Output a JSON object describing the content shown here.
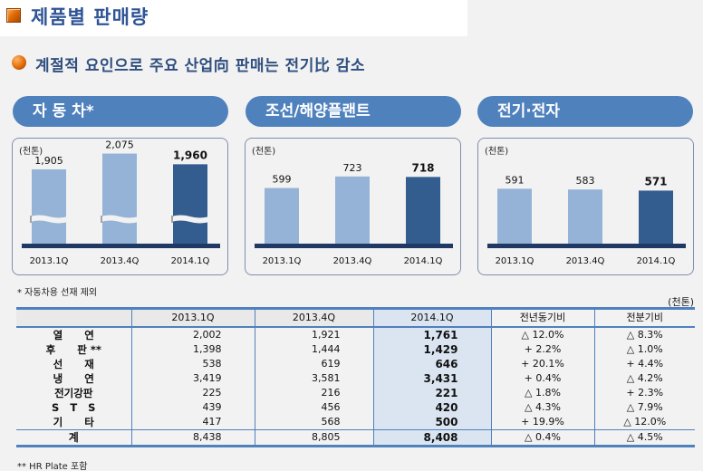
{
  "header": {
    "title": "제품별 판매량",
    "subtitle": "계절적 요인으로 주요 산업向 판매는 전기比 감소"
  },
  "chart_data": [
    {
      "type": "bar",
      "title": "자 동 차*",
      "unit": "(천톤)",
      "categories": [
        "2013.1Q",
        "2013.4Q",
        "2014.1Q"
      ],
      "values": [
        1905,
        2075,
        1960
      ],
      "value_labels": [
        "1,905",
        "2,075",
        "1,960"
      ],
      "axis_break": true,
      "highlight_index": 2,
      "colors": {
        "normal": "#95b3d7",
        "highlight": "#345d8f",
        "baseline": "#1f3864"
      }
    },
    {
      "type": "bar",
      "title": "조선/해양플랜트",
      "unit": "(천톤)",
      "categories": [
        "2013.1Q",
        "2013.4Q",
        "2014.1Q"
      ],
      "values": [
        599,
        723,
        718
      ],
      "value_labels": [
        "599",
        "723",
        "718"
      ],
      "axis_break": false,
      "highlight_index": 2,
      "colors": {
        "normal": "#95b3d7",
        "highlight": "#345d8f",
        "baseline": "#1f3864"
      }
    },
    {
      "type": "bar",
      "title": "전기·전자",
      "unit": "(천톤)",
      "categories": [
        "2013.1Q",
        "2013.4Q",
        "2014.1Q"
      ],
      "values": [
        591,
        583,
        571
      ],
      "value_labels": [
        "591",
        "583",
        "571"
      ],
      "axis_break": false,
      "highlight_index": 2,
      "colors": {
        "normal": "#95b3d7",
        "highlight": "#345d8f",
        "baseline": "#1f3864"
      }
    }
  ],
  "notes": {
    "auto_note": "* 자동차용 선재 제외",
    "hr_note": "** HR Plate 포함",
    "table_unit": "(천톤)"
  },
  "table": {
    "headers": [
      "",
      "2013.1Q",
      "2013.4Q",
      "2014.1Q",
      "전년동기비",
      "전분기비"
    ],
    "rows": [
      {
        "label": "열      연",
        "c1": "2,002",
        "c2": "1,921",
        "c3": "1,761",
        "yoy": "△ 12.0%",
        "qoq": "△  8.3%"
      },
      {
        "label": "후      판 **",
        "c1": "1,398",
        "c2": "1,444",
        "c3": "1,429",
        "yoy": "+ 2.2%",
        "qoq": "△ 1.0%"
      },
      {
        "label": "선      재",
        "c1": "538",
        "c2": "619",
        "c3": "646",
        "yoy": "+ 20.1%",
        "qoq": "+ 4.4%"
      },
      {
        "label": "냉      연",
        "c1": "3,419",
        "c2": "3,581",
        "c3": "3,431",
        "yoy": "+ 0.4%",
        "qoq": "△ 4.2%"
      },
      {
        "label": "전기강판",
        "c1": "225",
        "c2": "216",
        "c3": "221",
        "yoy": "△ 1.8%",
        "qoq": "+ 2.3%"
      },
      {
        "label": "S   T   S",
        "c1": "439",
        "c2": "456",
        "c3": "420",
        "yoy": "△ 4.3%",
        "qoq": "△ 7.9%"
      },
      {
        "label": "기      타",
        "c1": "417",
        "c2": "568",
        "c3": "500",
        "yoy": "+ 19.9%",
        "qoq": "△ 12.0%"
      }
    ],
    "total": {
      "label": "계",
      "c1": "8,438",
      "c2": "8,805",
      "c3": "8,408",
      "yoy": "△ 0.4%",
      "qoq": "△ 4.5%"
    }
  }
}
